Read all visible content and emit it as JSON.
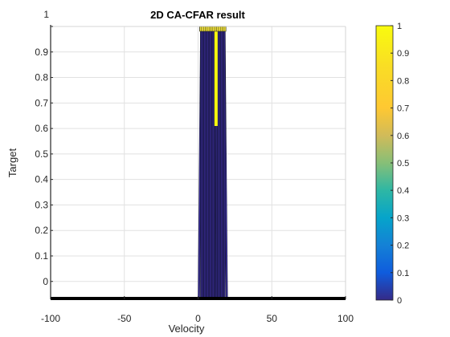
{
  "chart_data": {
    "type": "surface",
    "title": "2D CA-CFAR result",
    "xlabel": "Velocity",
    "ylabel": "Target",
    "xlim": [
      -100,
      100
    ],
    "ylim": [
      -0.07,
      1
    ],
    "x_ticks": [
      -100,
      -50,
      0,
      50,
      100
    ],
    "x_tick_labels": [
      "-100",
      "-50",
      "0",
      "50",
      "100"
    ],
    "y_ticks": [
      0,
      0.1,
      0.2,
      0.3,
      0.4,
      0.5,
      0.6,
      0.7,
      0.8,
      0.9,
      1
    ],
    "y_tick_labels": [
      "0",
      "0.1",
      "0.2",
      "0.3",
      "0.4",
      "0.5",
      "0.6",
      "0.7",
      "0.8",
      "0.9",
      "1"
    ],
    "grid": true,
    "colormap": "parula",
    "colorbar": {
      "limits": [
        0,
        1
      ],
      "ticks": [
        0,
        0.1,
        0.2,
        0.3,
        0.4,
        0.5,
        0.6,
        0.7,
        0.8,
        0.9,
        1
      ],
      "tick_labels": [
        "0",
        "0.1",
        "0.2",
        "0.3",
        "0.4",
        "0.5",
        "0.6",
        "0.7",
        "0.8",
        "0.9",
        "1"
      ]
    },
    "detection_band": {
      "x_start": 0,
      "x_end": 20,
      "value": 1
    },
    "baseline_value": 0
  }
}
